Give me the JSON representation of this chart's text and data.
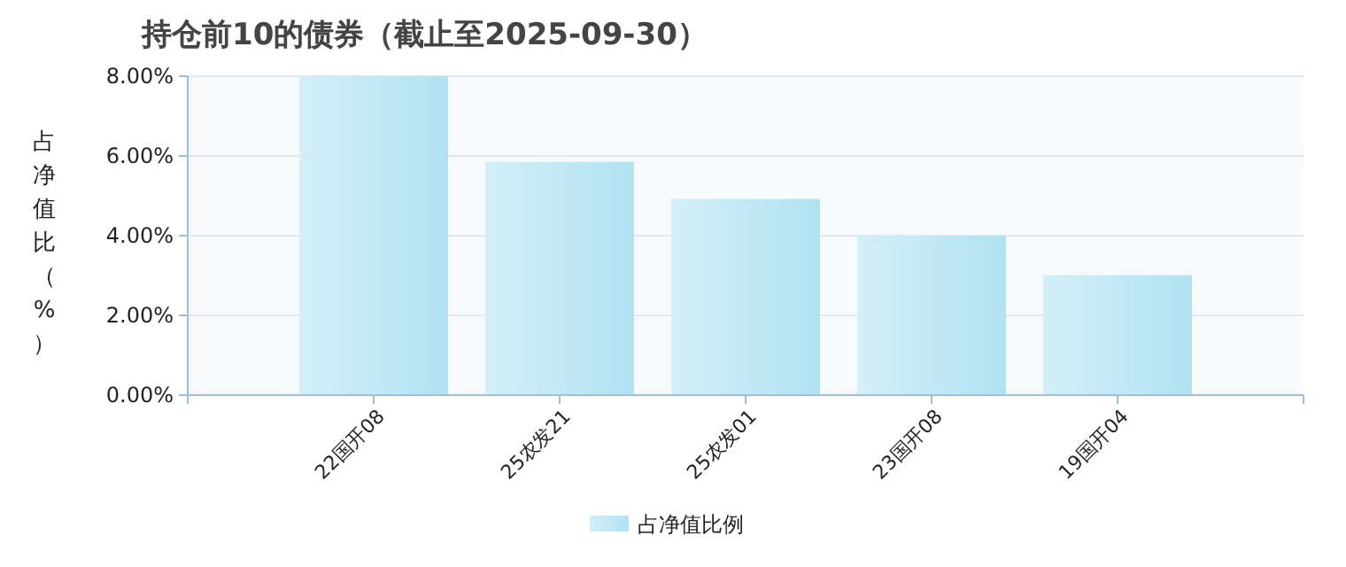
{
  "chart_data": {
    "type": "bar",
    "title": "持仓前10的债券（截止至2025-09-30）",
    "ylabel": "占净值比（%）",
    "categories": [
      "22国开08",
      "25农发21",
      "25农发01",
      "23国开08",
      "19国开04"
    ],
    "series": [
      {
        "name": "占净值比例",
        "color": "#b0e2f2",
        "values": [
          8.0,
          5.85,
          4.92,
          4.0,
          3.01
        ]
      }
    ],
    "ylim": [
      0,
      8
    ],
    "yticks": [
      {
        "value": 0,
        "label": "0.00%"
      },
      {
        "value": 2,
        "label": "2.00%"
      },
      {
        "value": 4,
        "label": "4.00%"
      },
      {
        "value": 6,
        "label": "6.00%"
      },
      {
        "value": 8,
        "label": "8.00%"
      }
    ],
    "grid": "y",
    "legend": "bottom"
  }
}
